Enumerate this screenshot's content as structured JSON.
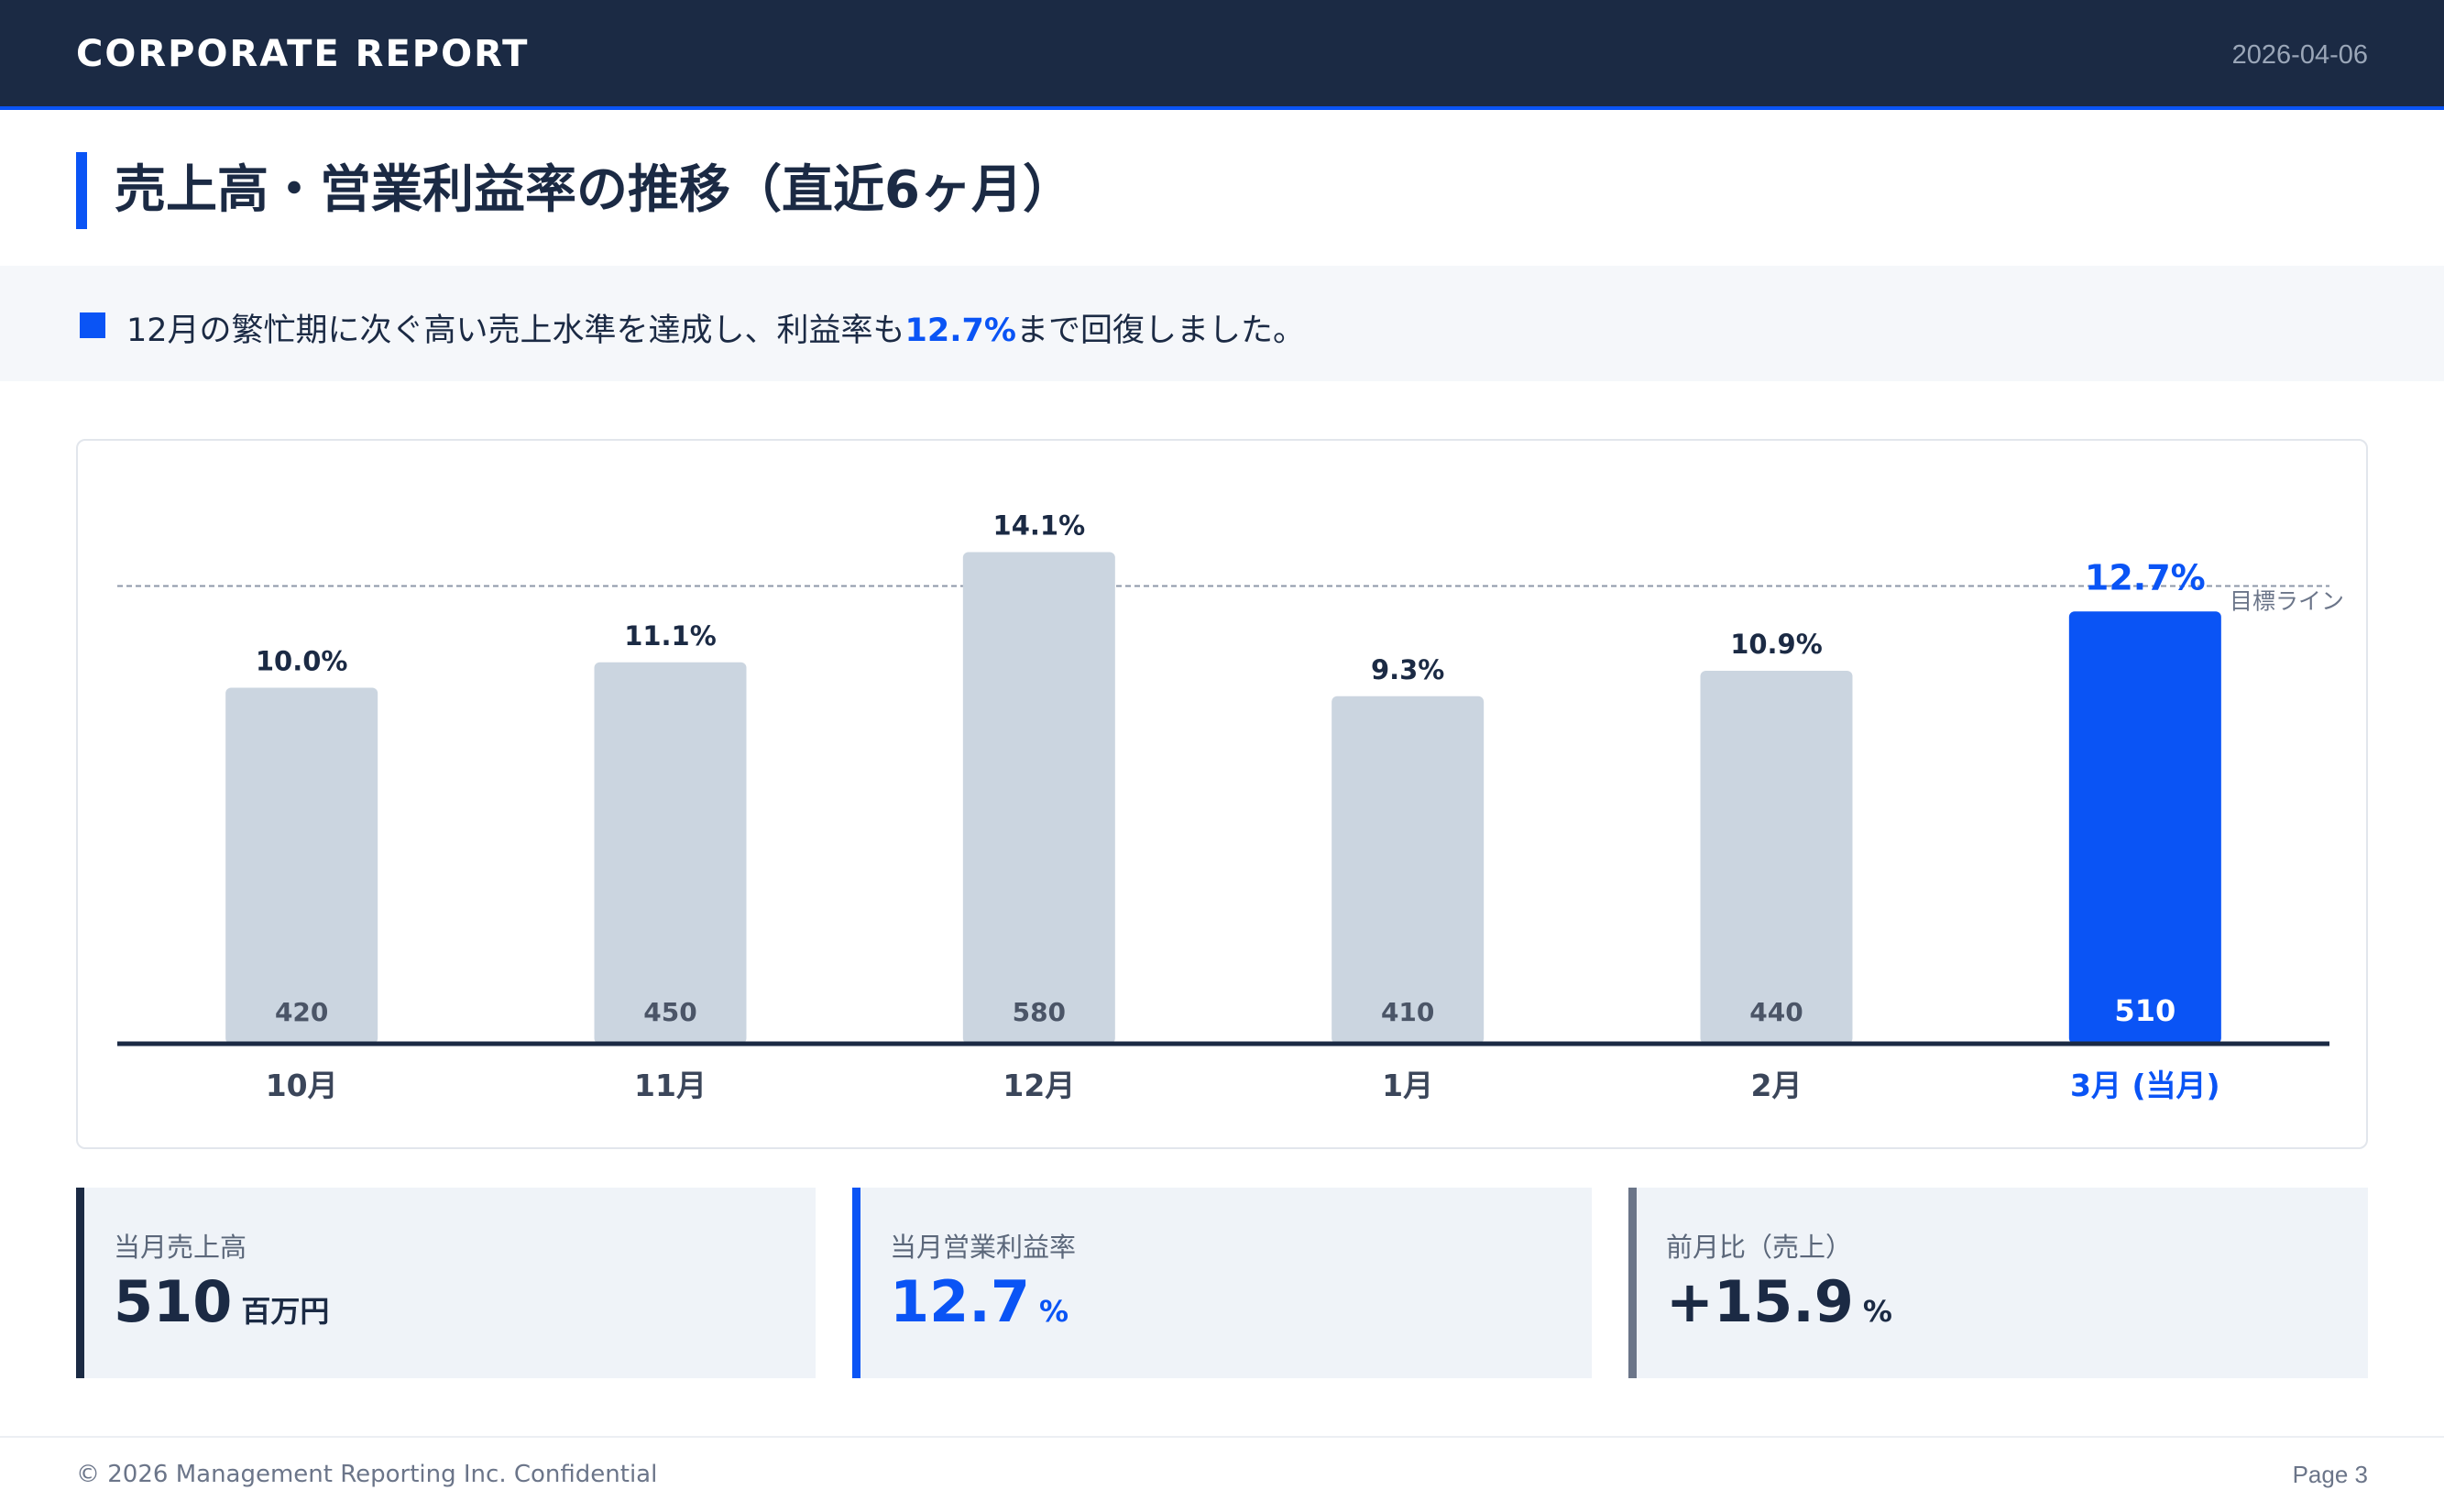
{
  "header": {
    "brand": "CORPORATE REPORT",
    "date": "2026-04-06"
  },
  "title": "売上高・営業利益率の推移（直近6ヶ月）",
  "message": {
    "before": "12月の繁忙期に次ぐ高い売上水準を達成し、利益率も",
    "highlight": "12.7%",
    "after": "まで回復しました。"
  },
  "chart_data": {
    "type": "bar",
    "categories": [
      "10月",
      "11月",
      "12月",
      "1月",
      "2月",
      "3月 (当月)"
    ],
    "series": [
      {
        "values": [
          420,
          450,
          580,
          410,
          440,
          510
        ]
      }
    ],
    "bar_top_labels": [
      "10.0%",
      "11.1%",
      "14.1%",
      "9.3%",
      "10.9%",
      "12.7%"
    ],
    "highlight_index": 5,
    "target_line": {
      "value": 540,
      "label": "目標ライン"
    },
    "ylim": [
      0,
      640
    ],
    "grid": false,
    "colors": {
      "bar": "#cbd5e0",
      "highlight": "#0a54f5",
      "axis": "#1b2a44",
      "target": "#8e97a8"
    }
  },
  "kpis": [
    {
      "label": "当月売上高",
      "value": "510",
      "unit": "百万円"
    },
    {
      "label": "当月営業利益率",
      "value": "12.7",
      "unit": "%"
    },
    {
      "label": "前月比（売上）",
      "value": "+15.9",
      "unit": "%"
    }
  ],
  "footer": {
    "copyright": "© 2026 Management Reporting Inc. Confidential",
    "page": "Page 3"
  }
}
